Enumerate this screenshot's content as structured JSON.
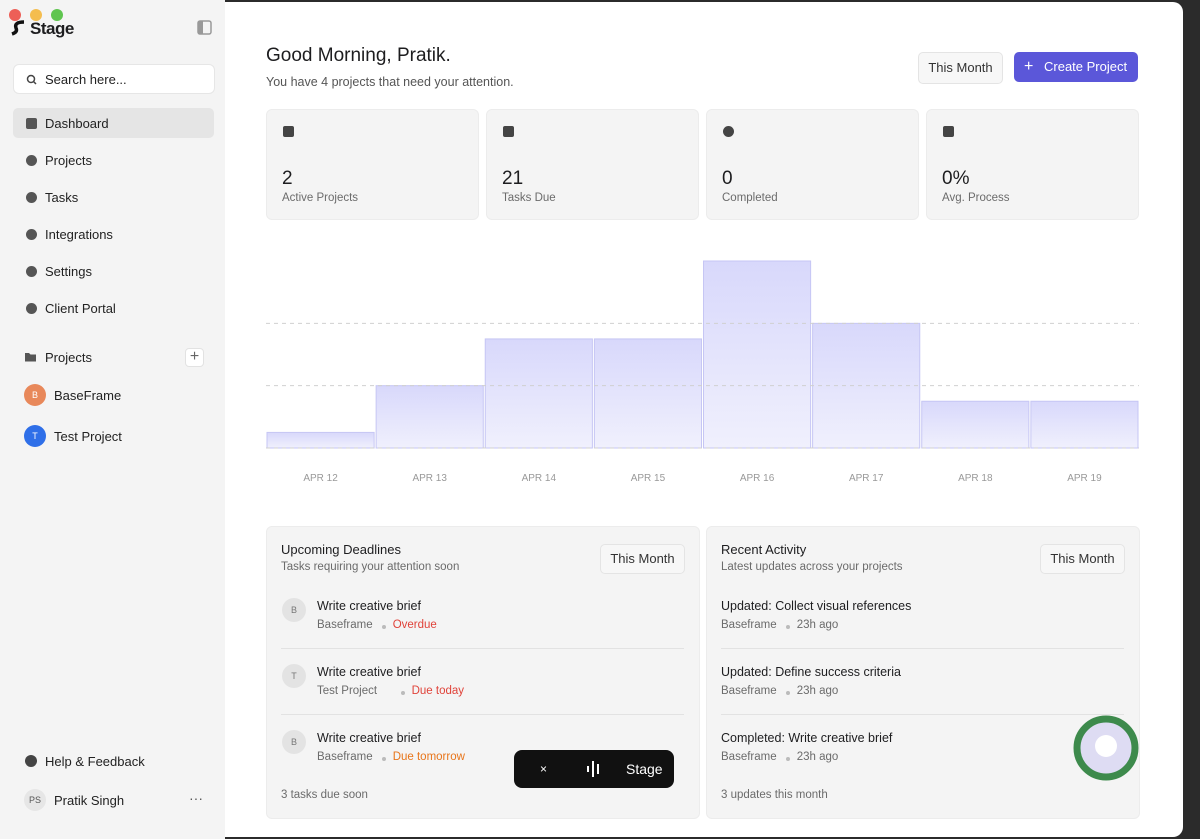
{
  "sidebar": {
    "logo": "Stage",
    "search": "Search here...",
    "nav": [
      "Dashboard",
      "Projects",
      "Tasks",
      "Integrations",
      "Settings",
      "Client Portal"
    ],
    "projects_title": "Projects",
    "projects": [
      {
        "initial": "B",
        "name": "BaseFrame"
      },
      {
        "initial": "T",
        "name": "Test Project"
      }
    ],
    "help": "Help & Feedback",
    "user": {
      "initials": "PS",
      "name": "Pratik Singh"
    }
  },
  "header": {
    "greeting": "Good Morning, Pratik.",
    "subtitle": "You have 4 projects that need your attention.",
    "filter": "This Month",
    "button": "Create Project"
  },
  "stats": [
    {
      "value": "2",
      "label": "Active Projects"
    },
    {
      "value": "21",
      "label": "Tasks Due"
    },
    {
      "value": "0",
      "label": "Completed"
    },
    {
      "value": "0%",
      "label": "Avg. Process"
    }
  ],
  "chart_data": {
    "type": "bar",
    "categories": [
      "APR 12",
      "APR 13",
      "APR 14",
      "APR 15",
      "APR 16",
      "APR 17",
      "APR 18",
      "APR 19"
    ],
    "values": [
      0.5,
      2,
      3.5,
      3.5,
      6,
      4,
      1.5,
      1.5
    ],
    "color": "#dcdcfb",
    "ylim": [
      0,
      6
    ],
    "yticks": [
      0,
      2,
      4
    ],
    "grid": true
  },
  "deadlines": {
    "title": "Upcoming Deadlines",
    "subtitle": "Tasks requiring your attention soon",
    "filter": "This Month",
    "items": [
      {
        "initial": "B",
        "title": "Write creative brief",
        "project": "Baseframe",
        "status": "Overdue"
      },
      {
        "initial": "T",
        "title": "Write creative brief",
        "project": "Test Project",
        "status": "Due today"
      },
      {
        "initial": "B",
        "title": "Write creative brief",
        "project": "Baseframe",
        "status": "Due tomorrow"
      }
    ],
    "footer": "3 tasks due soon"
  },
  "activity": {
    "title": "Recent Activity",
    "subtitle": "Latest updates across your projects",
    "filter": "This Month",
    "items": [
      {
        "title": "Updated: Collect visual references",
        "project": "Baseframe",
        "time": "23h ago"
      },
      {
        "title": "Updated: Define success criteria",
        "project": "Baseframe",
        "time": "23h ago"
      },
      {
        "title": "Completed: Write creative brief",
        "project": "Baseframe",
        "time": "23h ago"
      }
    ],
    "footer": "3 updates this month"
  },
  "recorder": {
    "close": "×",
    "label": "Stage"
  }
}
